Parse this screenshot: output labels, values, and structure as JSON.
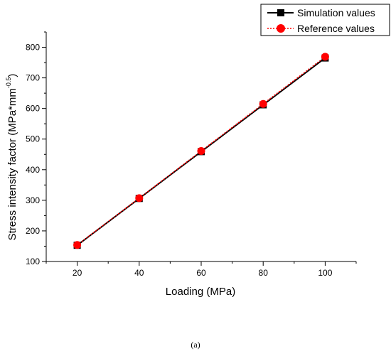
{
  "caption": "(a)",
  "colors": {
    "simulation": "#000000",
    "reference": "#ff0000",
    "axis": "#000000",
    "background": "#ffffff"
  },
  "chart_data": {
    "type": "line",
    "xlabel": "Loading (MPa)",
    "ylabel_main": "Stress intensity factor (MPa*mm",
    "ylabel_exponent": "-0.5",
    "ylabel_close": ")",
    "x": [
      20,
      40,
      60,
      80,
      100
    ],
    "xlim": [
      10,
      110
    ],
    "ylim": [
      100,
      850
    ],
    "xticks": [
      20,
      40,
      60,
      80,
      100
    ],
    "yticks": [
      100,
      200,
      300,
      400,
      500,
      600,
      700,
      800
    ],
    "grid": false,
    "legend_position": "top-right",
    "series": [
      {
        "name": "Simulation values",
        "values": [
          153,
          306,
          459,
          612,
          765
        ],
        "marker": "square",
        "line_style": "solid",
        "color": "#000000"
      },
      {
        "name": "Reference values",
        "values": [
          154,
          307,
          461,
          615,
          769
        ],
        "marker": "circle",
        "line_style": "dotted",
        "color": "#ff0000"
      }
    ]
  }
}
